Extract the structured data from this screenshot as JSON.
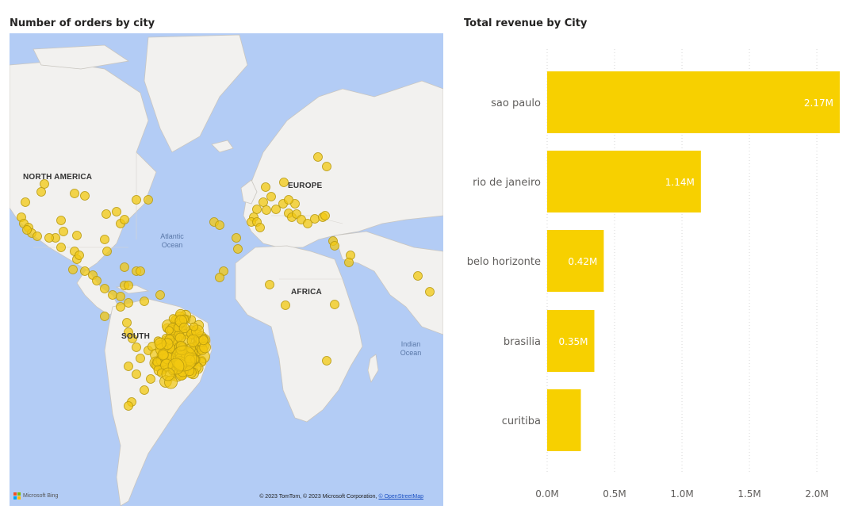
{
  "map": {
    "title": "Number of orders by city",
    "continent_labels": {
      "north_america": "NORTH AMERICA",
      "europe": "EUROPE",
      "africa": "AFRICA",
      "south_america": "SOUTH"
    },
    "ocean_labels": {
      "atlantic": "Atlantic\nOcean",
      "indian": "Indian\nOcean"
    },
    "credit_text": "© 2023 TomTom, © 2023 Microsoft Corporation, ",
    "credit_link": "© OpenStreetMap",
    "bing_label": "Microsoft Bing",
    "colors": {
      "ocean": "#b3ccf5",
      "land": "#f2f1ef",
      "bubble_fill": "#f2c811",
      "bubble_stroke": "#b89a10"
    }
  },
  "chart_data": {
    "type": "bar",
    "orientation": "horizontal",
    "title": "Total revenue by City",
    "categories": [
      "sao paulo",
      "rio de janeiro",
      "belo horizonte",
      "brasilia",
      "curitiba"
    ],
    "values": [
      2.17,
      1.14,
      0.42,
      0.35,
      0.25
    ],
    "data_labels": [
      "2.17M",
      "1.14M",
      "0.42M",
      "0.35M",
      ""
    ],
    "xticks": [
      "0.0M",
      "0.5M",
      "1.0M",
      "1.5M",
      "2.0M"
    ],
    "xtick_values": [
      0,
      0.5,
      1.0,
      1.5,
      2.0
    ],
    "xlim": [
      0,
      2.17
    ],
    "unit": "M",
    "grid": true,
    "color": "#f7d000"
  }
}
